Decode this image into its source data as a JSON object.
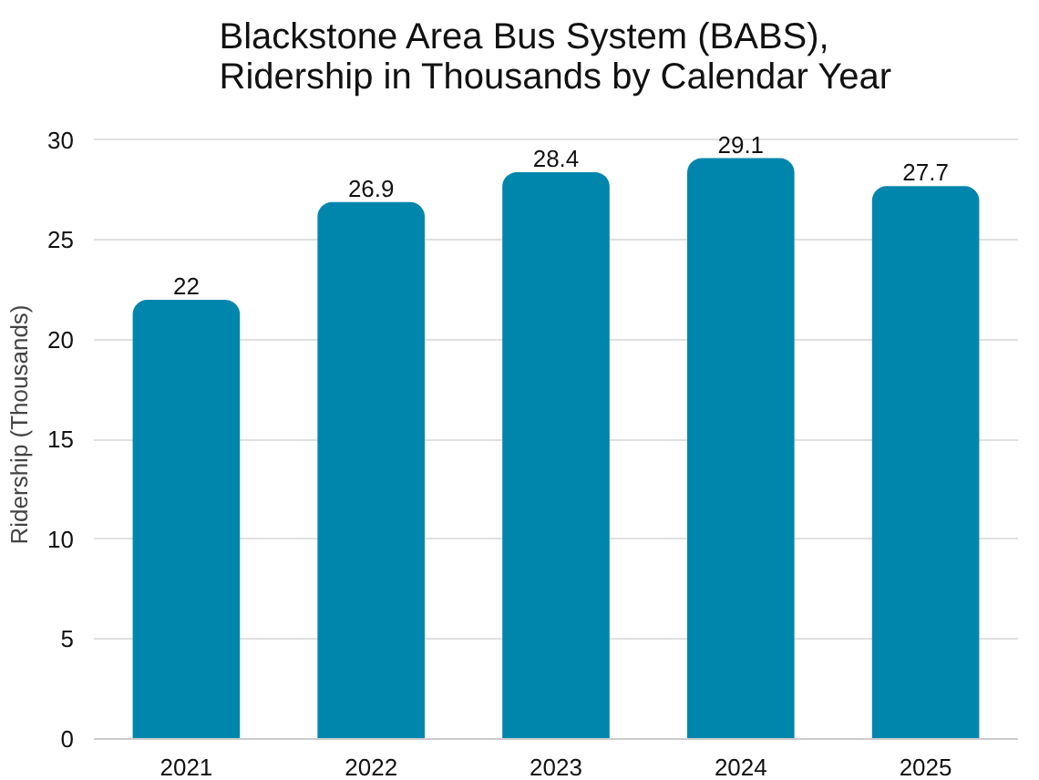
{
  "chart_data": {
    "type": "bar",
    "title": "Blackstone Area Bus System (BABS),\nRidership in Thousands by Calendar Year",
    "ylabel": "Ridership (Thousands)",
    "categories": [
      "2021",
      "2022",
      "2023",
      "2024",
      "2025"
    ],
    "values": [
      22,
      26.9,
      28.4,
      29.1,
      27.7
    ],
    "color": "#0086ad",
    "ylim": [
      0,
      30
    ],
    "yticks": [
      0,
      5,
      10,
      15,
      20,
      25,
      30
    ],
    "grid": "y",
    "data_labels": true
  }
}
